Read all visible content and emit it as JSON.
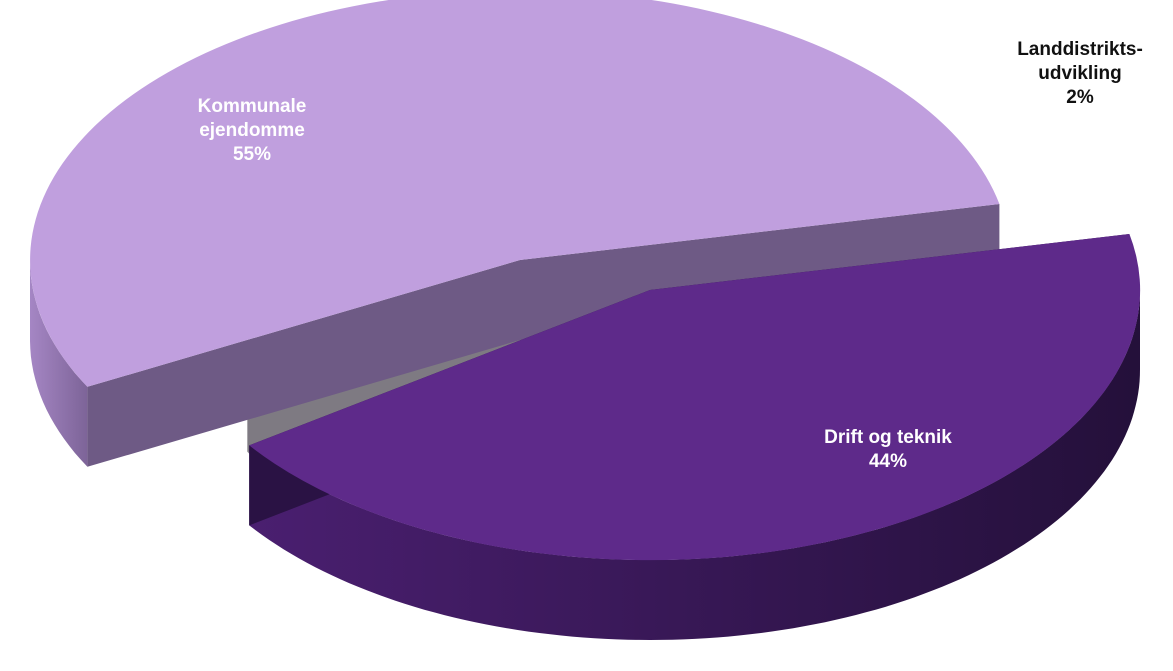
{
  "chart_data": {
    "type": "pie",
    "style": "3d-exploded",
    "title": "",
    "slices": [
      {
        "name": "Kommunale ejendomme",
        "label_lines": [
          "Kommunale",
          "ejendomme"
        ],
        "pct_label": "55%",
        "value": 55,
        "top_color": "#c09fde",
        "side_color": "#8a6ba8",
        "cut_color": "#6e5a85",
        "label_color": "#ffffff"
      },
      {
        "name": "Drift og teknik",
        "label_lines": [
          "Drift og teknik"
        ],
        "pct_label": "44%",
        "value": 44,
        "top_color": "#5e2a8a",
        "side_color": "#3a1a5c",
        "cut_color": "#2a1244",
        "label_color": "#ffffff"
      },
      {
        "name": "Landdistriktsudvikling",
        "label_lines": [
          "Landdistrikts-",
          "udvikling"
        ],
        "pct_label": "2%",
        "value": 2,
        "top_color": "#ece6f4",
        "side_color": "#8c8890",
        "cut_color": "#7e7a82",
        "label_color": "#111111"
      }
    ]
  }
}
